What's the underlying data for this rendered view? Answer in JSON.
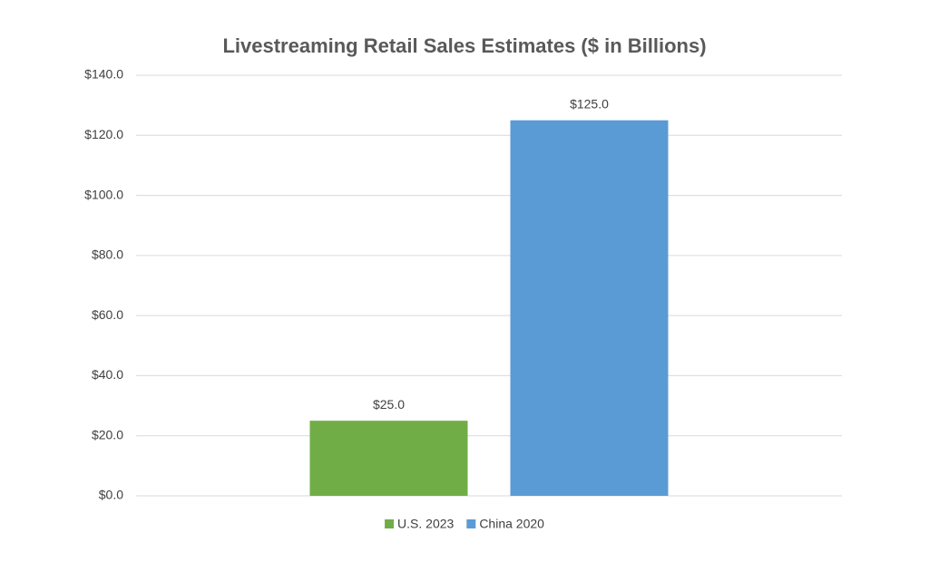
{
  "chart_data": {
    "type": "bar",
    "title": "Livestreaming Retail Sales Estimates ($ in Billions)",
    "categories": [
      null
    ],
    "series": [
      {
        "name": "U.S. 2023",
        "color": "#70ad47",
        "values": [
          25
        ],
        "value_labels": [
          "$25.0"
        ]
      },
      {
        "name": "China 2020",
        "color": "#5b9bd5",
        "values": [
          125
        ],
        "value_labels": [
          "$125.0"
        ]
      }
    ],
    "ylim": [
      0,
      140
    ],
    "yticks": [
      {
        "value": 0,
        "label": "$0.0"
      },
      {
        "value": 20,
        "label": "$20.0"
      },
      {
        "value": 40,
        "label": "$40.0"
      },
      {
        "value": 60,
        "label": "$60.0"
      },
      {
        "value": 80,
        "label": "$80.0"
      },
      {
        "value": 100,
        "label": "$100.0"
      },
      {
        "value": 120,
        "label": "$120.0"
      },
      {
        "value": 140,
        "label": "$140.0"
      }
    ],
    "grid": true,
    "legend": "bottom"
  }
}
